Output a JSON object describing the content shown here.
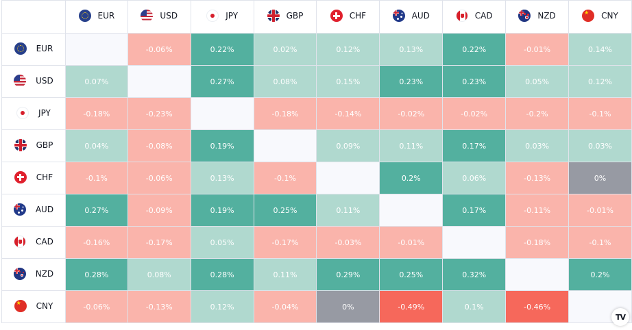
{
  "currencies": [
    "EUR",
    "USD",
    "JPY",
    "GBP",
    "CHF",
    "AUD",
    "CAD",
    "NZD",
    "CNY"
  ],
  "flag_icons": [
    "eu-flag-icon",
    "us-flag-icon",
    "japan-flag-icon",
    "uk-flag-icon",
    "swiss-flag-icon",
    "australia-flag-icon",
    "canada-flag-icon",
    "new-zealand-flag-icon",
    "china-flag-icon"
  ],
  "colors": {
    "strong_positive": "#53b09f",
    "positive": "#b0d9cf",
    "negative": "#fab4ab",
    "strong_negative": "#f6685b",
    "neutral": "#979aa3",
    "diagonal": "#f8f9fd"
  },
  "cells": [
    [
      null,
      "-0.06%",
      "0.22%",
      "0.02%",
      "0.12%",
      "0.13%",
      "0.22%",
      "-0.01%",
      "0.14%"
    ],
    [
      "0.07%",
      null,
      "0.27%",
      "0.08%",
      "0.15%",
      "0.23%",
      "0.23%",
      "0.05%",
      "0.12%"
    ],
    [
      "-0.18%",
      "-0.23%",
      null,
      "-0.18%",
      "-0.14%",
      "-0.02%",
      "-0.02%",
      "-0.2%",
      "-0.1%"
    ],
    [
      "0.04%",
      "-0.08%",
      "0.19%",
      null,
      "0.09%",
      "0.11%",
      "0.17%",
      "0.03%",
      "0.03%"
    ],
    [
      "-0.1%",
      "-0.06%",
      "0.13%",
      "-0.1%",
      null,
      "0.2%",
      "0.06%",
      "-0.13%",
      "0%"
    ],
    [
      "0.27%",
      "-0.09%",
      "0.19%",
      "0.25%",
      "0.11%",
      null,
      "0.17%",
      "-0.11%",
      "-0.01%"
    ],
    [
      "-0.16%",
      "-0.17%",
      "0.05%",
      "-0.17%",
      "-0.03%",
      "-0.01%",
      null,
      "-0.18%",
      "-0.1%"
    ],
    [
      "0.28%",
      "0.08%",
      "0.28%",
      "0.11%",
      "0.29%",
      "0.25%",
      "0.32%",
      null,
      "0.2%"
    ],
    [
      "-0.06%",
      "-0.13%",
      "0.12%",
      "-0.04%",
      "0%",
      "-0.49%",
      "0.1%",
      "-0.46%",
      null
    ]
  ],
  "levels": [
    [
      null,
      "neg",
      "pos2",
      "pos",
      "pos",
      "pos",
      "pos2",
      "neg",
      "pos"
    ],
    [
      "pos",
      null,
      "pos2",
      "pos",
      "pos",
      "pos2",
      "pos2",
      "pos",
      "pos"
    ],
    [
      "neg",
      "neg",
      null,
      "neg",
      "neg",
      "neg",
      "neg",
      "neg",
      "neg"
    ],
    [
      "pos",
      "neg",
      "pos2",
      null,
      "pos",
      "pos",
      "pos2",
      "pos",
      "pos"
    ],
    [
      "neg",
      "neg",
      "pos",
      "neg",
      null,
      "pos2",
      "pos",
      "neg",
      "zero"
    ],
    [
      "pos2",
      "neg",
      "pos2",
      "pos2",
      "pos",
      null,
      "pos2",
      "neg",
      "neg"
    ],
    [
      "neg",
      "neg",
      "pos",
      "neg",
      "neg",
      "neg",
      null,
      "neg",
      "neg"
    ],
    [
      "pos2",
      "pos",
      "pos2",
      "pos",
      "pos2",
      "pos2",
      "pos2",
      null,
      "pos2"
    ],
    [
      "neg",
      "neg",
      "pos",
      "neg",
      "zero",
      "neg2",
      "pos",
      "neg2",
      null
    ]
  ],
  "logo": "TV"
}
